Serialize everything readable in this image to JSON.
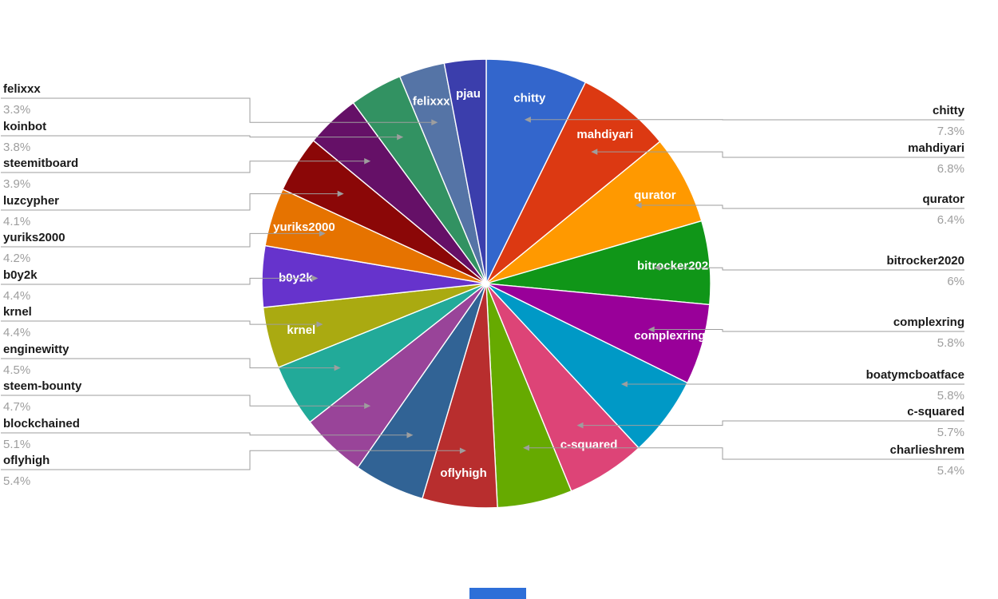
{
  "chart": {
    "background": "#ffffff",
    "label_color": "#1a1a1a",
    "percent_color": "#9e9e9e",
    "line_color": "#9e9e9e",
    "slice_text_color": "#ffffff"
  },
  "footer": {
    "accent_color": "#2e6fd8"
  },
  "chart_data": {
    "type": "pie",
    "title": "",
    "legend_position": "none",
    "start_angle_deg": 0,
    "direction": "clockwise",
    "unit": "%",
    "slices": [
      {
        "label": "chitty",
        "value": 7.3,
        "pct_label": "7.3%",
        "color": "#3366CC",
        "inner_label": true,
        "callout": "right"
      },
      {
        "label": "mahdiyari",
        "value": 6.8,
        "pct_label": "6.8%",
        "color": "#DC3912",
        "inner_label": true,
        "callout": "right"
      },
      {
        "label": "qurator",
        "value": 6.4,
        "pct_label": "6.4%",
        "color": "#FF9900",
        "inner_label": true,
        "callout": "right"
      },
      {
        "label": "bitrocker2020",
        "value": 6.0,
        "pct_label": "6%",
        "color": "#109618",
        "inner_label": true,
        "callout": "right"
      },
      {
        "label": "complexring",
        "value": 5.8,
        "pct_label": "5.8%",
        "color": "#990099",
        "inner_label": true,
        "callout": "right"
      },
      {
        "label": "boatymcboatface",
        "value": 5.8,
        "pct_label": "5.8%",
        "color": "#0099C6",
        "inner_label": false,
        "callout": "right"
      },
      {
        "label": "c-squared",
        "value": 5.7,
        "pct_label": "5.7%",
        "color": "#DD4477",
        "inner_label": true,
        "callout": "right"
      },
      {
        "label": "charlieshrem",
        "value": 5.4,
        "pct_label": "5.4%",
        "color": "#66AA00",
        "inner_label": false,
        "callout": "right"
      },
      {
        "label": "oflyhigh",
        "value": 5.4,
        "pct_label": "5.4%",
        "color": "#B82E2E",
        "inner_label": true,
        "callout": "left"
      },
      {
        "label": "blockchained",
        "value": 5.1,
        "pct_label": "5.1%",
        "color": "#316395",
        "inner_label": false,
        "callout": "left"
      },
      {
        "label": "steem-bounty",
        "value": 4.7,
        "pct_label": "4.7%",
        "color": "#994499",
        "inner_label": false,
        "callout": "left"
      },
      {
        "label": "enginewitty",
        "value": 4.5,
        "pct_label": "4.5%",
        "color": "#22AA99",
        "inner_label": false,
        "callout": "left"
      },
      {
        "label": "krnel",
        "value": 4.4,
        "pct_label": "4.4%",
        "color": "#AAAA11",
        "inner_label": true,
        "callout": "left"
      },
      {
        "label": "b0y2k",
        "value": 4.4,
        "pct_label": "4.4%",
        "color": "#6633CC",
        "inner_label": true,
        "callout": "left"
      },
      {
        "label": "yuriks2000",
        "value": 4.2,
        "pct_label": "4.2%",
        "color": "#E67300",
        "inner_label": true,
        "callout": "left"
      },
      {
        "label": "luzcypher",
        "value": 4.1,
        "pct_label": "4.1%",
        "color": "#8B0707",
        "inner_label": false,
        "callout": "left"
      },
      {
        "label": "steemitboard",
        "value": 3.9,
        "pct_label": "3.9%",
        "color": "#651067",
        "inner_label": false,
        "callout": "left"
      },
      {
        "label": "koinbot",
        "value": 3.8,
        "pct_label": "3.8%",
        "color": "#329262",
        "inner_label": false,
        "callout": "left"
      },
      {
        "label": "felixxx",
        "value": 3.3,
        "pct_label": "3.3%",
        "color": "#5574A6",
        "inner_label": true,
        "callout": "left"
      },
      {
        "label": "pjau",
        "value": 3.0,
        "pct_label": "3%",
        "color": "#3B3EAC",
        "inner_label": true,
        "callout": "none"
      }
    ]
  }
}
